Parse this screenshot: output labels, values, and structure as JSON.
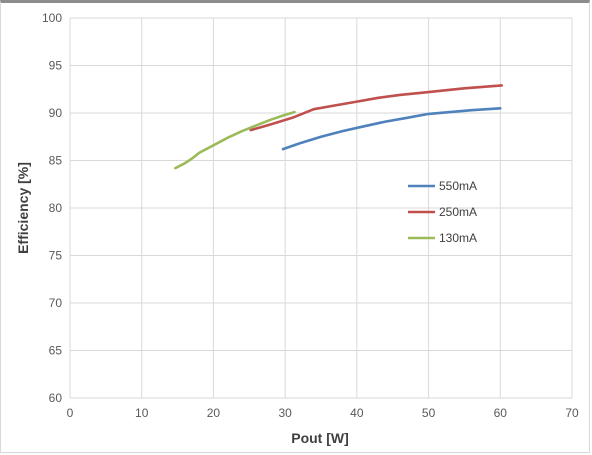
{
  "chart_data": {
    "type": "line",
    "title": "",
    "xlabel": "Pout [W]",
    "ylabel": "Efficiency [%]",
    "xlim": [
      0,
      70
    ],
    "ylim": [
      60,
      100
    ],
    "xticks": [
      0,
      10,
      20,
      30,
      40,
      50,
      60,
      70
    ],
    "yticks": [
      60,
      65,
      70,
      75,
      80,
      85,
      90,
      95,
      100
    ],
    "grid": true,
    "legend_position": "right",
    "series": [
      {
        "name": "550mA",
        "color": "#4f81bd",
        "x": [
          29.7,
          32,
          35,
          38,
          41,
          44,
          47,
          50,
          53,
          56,
          60
        ],
        "y": [
          86.2,
          86.8,
          87.5,
          88.1,
          88.6,
          89.1,
          89.5,
          89.9,
          90.1,
          90.3,
          90.5
        ]
      },
      {
        "name": "250mA",
        "color": "#c0504d",
        "x": [
          25.2,
          28,
          31,
          34,
          37,
          40,
          43,
          46,
          50,
          55,
          60.2
        ],
        "y": [
          88.2,
          88.8,
          89.5,
          90.4,
          90.8,
          91.2,
          91.6,
          91.9,
          92.2,
          92.6,
          92.9
        ]
      },
      {
        "name": "130mA",
        "color": "#9bbb59",
        "x": [
          14.7,
          16,
          17,
          18,
          20,
          22,
          24,
          26,
          28,
          30,
          31.3
        ],
        "y": [
          84.2,
          84.7,
          85.2,
          85.8,
          86.6,
          87.4,
          88.1,
          88.7,
          89.3,
          89.8,
          90.1
        ]
      }
    ]
  }
}
